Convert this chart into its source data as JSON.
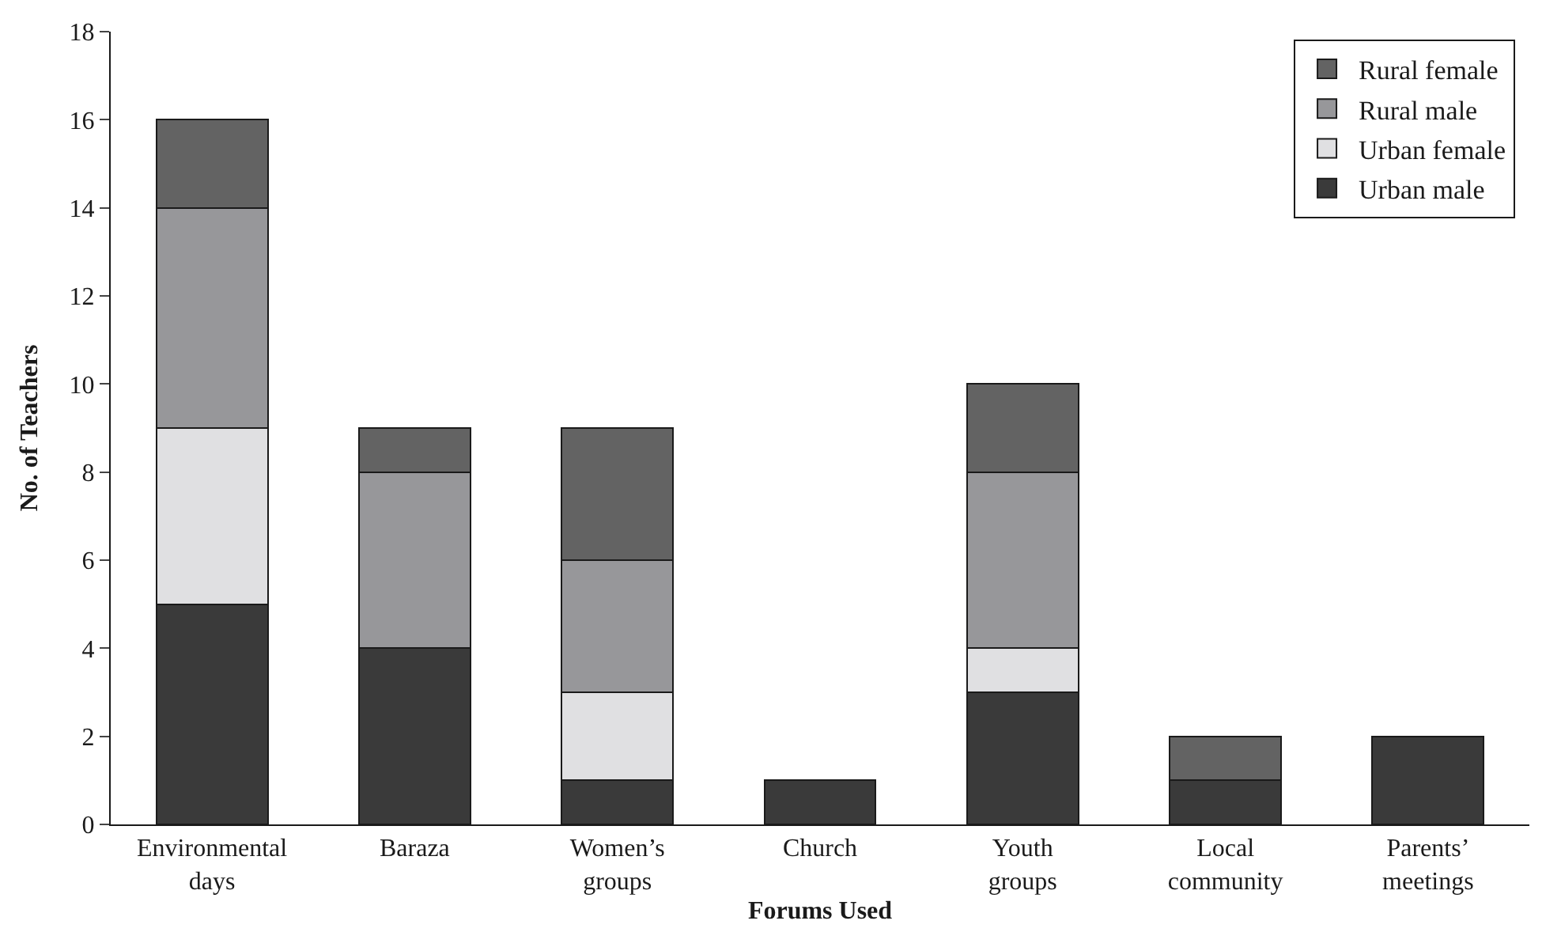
{
  "chart_data": {
    "type": "bar",
    "stacked": true,
    "xlabel": "Forums Used",
    "ylabel": "No. of Teachers",
    "categories": [
      "Environmental days",
      "Baraza",
      "Women’s groups",
      "Church",
      "Youth groups",
      "Local community",
      "Parents’ meetings"
    ],
    "series": [
      {
        "name": "Urban male",
        "color": "#3a3a3a",
        "values": [
          5,
          4,
          1,
          1,
          3,
          1,
          2
        ]
      },
      {
        "name": "Urban female",
        "color": "#e0e0e2",
        "values": [
          4,
          0,
          2,
          0,
          1,
          0,
          0
        ]
      },
      {
        "name": "Rural male",
        "color": "#97979a",
        "values": [
          5,
          4,
          3,
          0,
          4,
          0,
          0
        ]
      },
      {
        "name": "Rural female",
        "color": "#636363",
        "values": [
          2,
          1,
          3,
          0,
          2,
          1,
          0
        ]
      }
    ],
    "ylim": [
      0,
      18
    ],
    "yticks": [
      0,
      2,
      4,
      6,
      8,
      10,
      12,
      14,
      16,
      18
    ],
    "legend": "top right"
  }
}
